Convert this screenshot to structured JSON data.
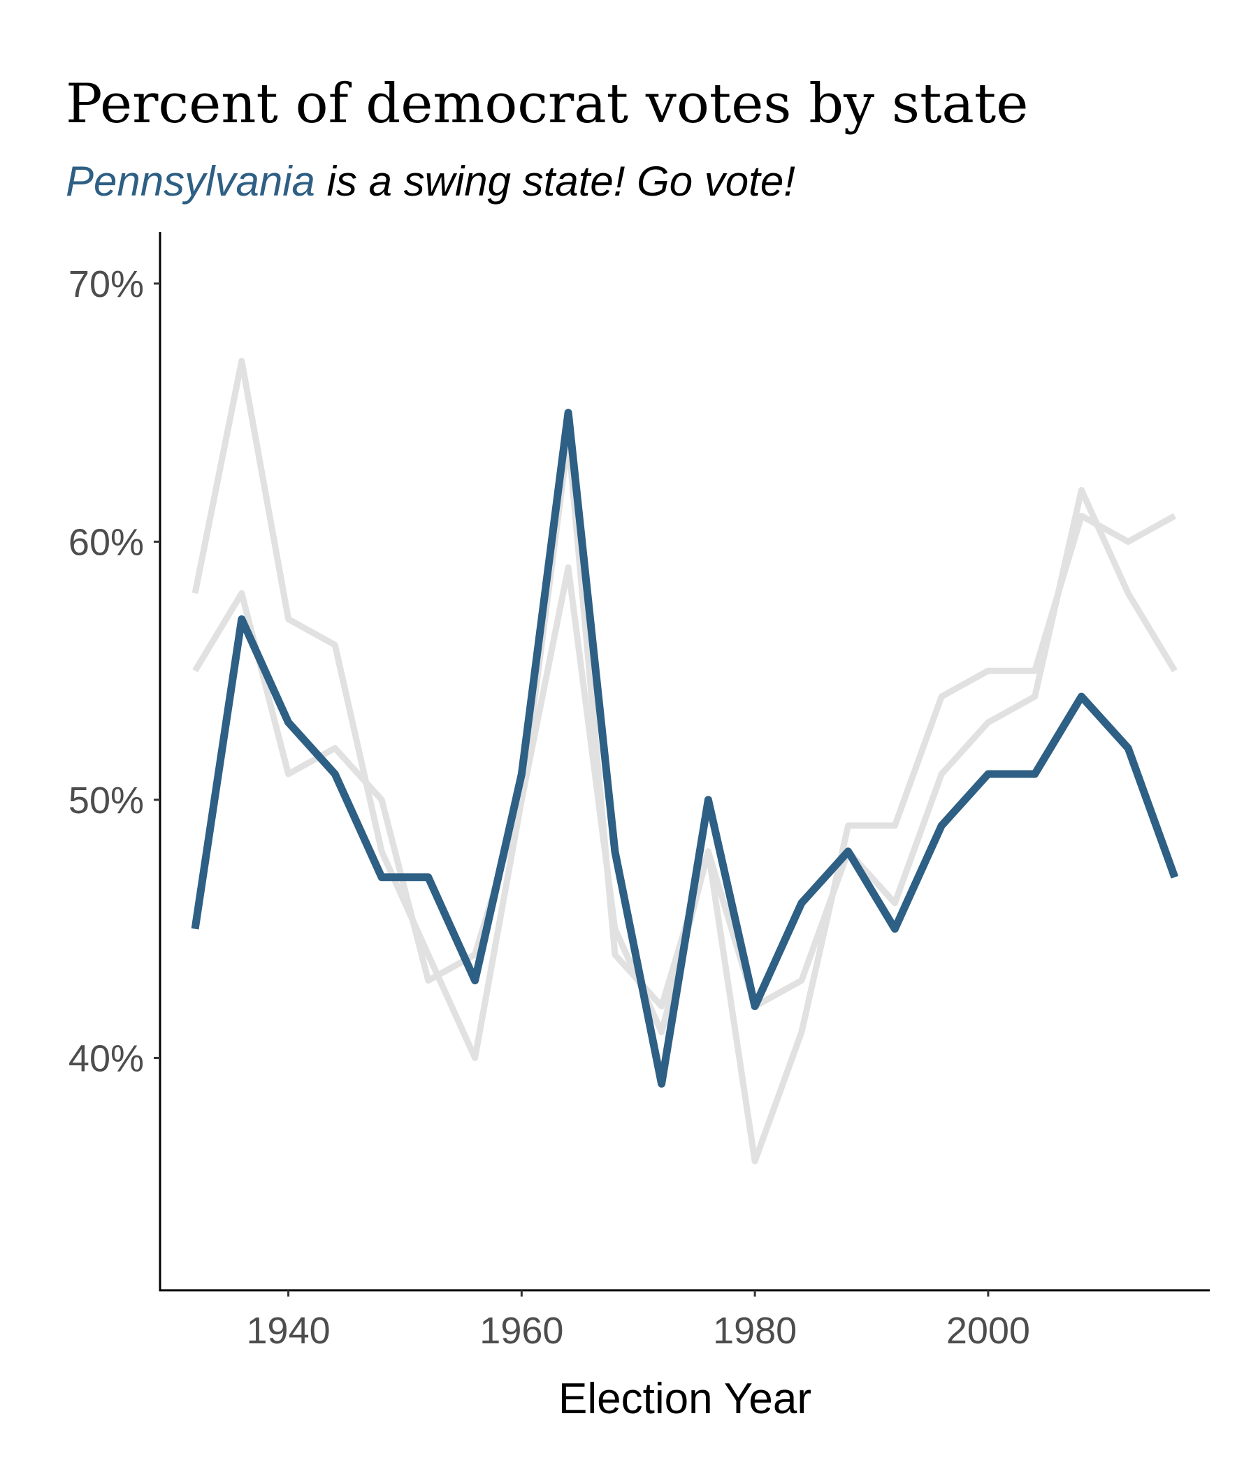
{
  "title": "Percent of democrat votes by state",
  "subtitle": {
    "highlight": "Pennsylvania",
    "rest": " is a swing state! Go vote!"
  },
  "colors": {
    "highlight": "#2e5f84",
    "background_series": "#e1e1e1"
  },
  "chart_data": {
    "type": "line",
    "xlabel": "Election Year",
    "ylabel": "",
    "xlim": [
      1929,
      2019
    ],
    "ylim": [
      0.31,
      0.72
    ],
    "x_ticks": [
      1940,
      1960,
      1980,
      2000
    ],
    "x_tick_labels": [
      "1940",
      "1960",
      "1980",
      "2000"
    ],
    "y_ticks": [
      0.4,
      0.5,
      0.6,
      0.7
    ],
    "y_tick_labels": [
      "40%",
      "50%",
      "60%",
      "70%"
    ],
    "grid": false,
    "legend": "none",
    "x": [
      1932,
      1936,
      1940,
      1944,
      1948,
      1952,
      1956,
      1960,
      1964,
      1968,
      1972,
      1976,
      1980,
      1984,
      1988,
      1992,
      1996,
      2000,
      2004,
      2008,
      2012,
      2016
    ],
    "series": [
      {
        "highlight": false,
        "values": [
          0.58,
          0.67,
          0.57,
          0.56,
          0.48,
          0.44,
          0.4,
          0.5,
          0.59,
          0.45,
          0.41,
          0.48,
          0.36,
          0.41,
          0.49,
          0.49,
          0.54,
          0.55,
          0.55,
          0.61,
          0.6,
          0.61
        ]
      },
      {
        "highlight": false,
        "values": [
          0.55,
          0.58,
          0.51,
          0.52,
          0.5,
          0.43,
          0.44,
          0.5,
          0.64,
          0.44,
          0.42,
          0.48,
          0.42,
          0.43,
          0.48,
          0.46,
          0.51,
          0.53,
          0.54,
          0.62,
          0.58,
          0.55
        ]
      },
      {
        "name": "Pennsylvania",
        "highlight": true,
        "values": [
          0.45,
          0.57,
          0.53,
          0.51,
          0.47,
          0.47,
          0.43,
          0.51,
          0.65,
          0.48,
          0.39,
          0.5,
          0.42,
          0.46,
          0.48,
          0.45,
          0.49,
          0.51,
          0.51,
          0.54,
          0.52,
          0.47
        ]
      }
    ]
  }
}
